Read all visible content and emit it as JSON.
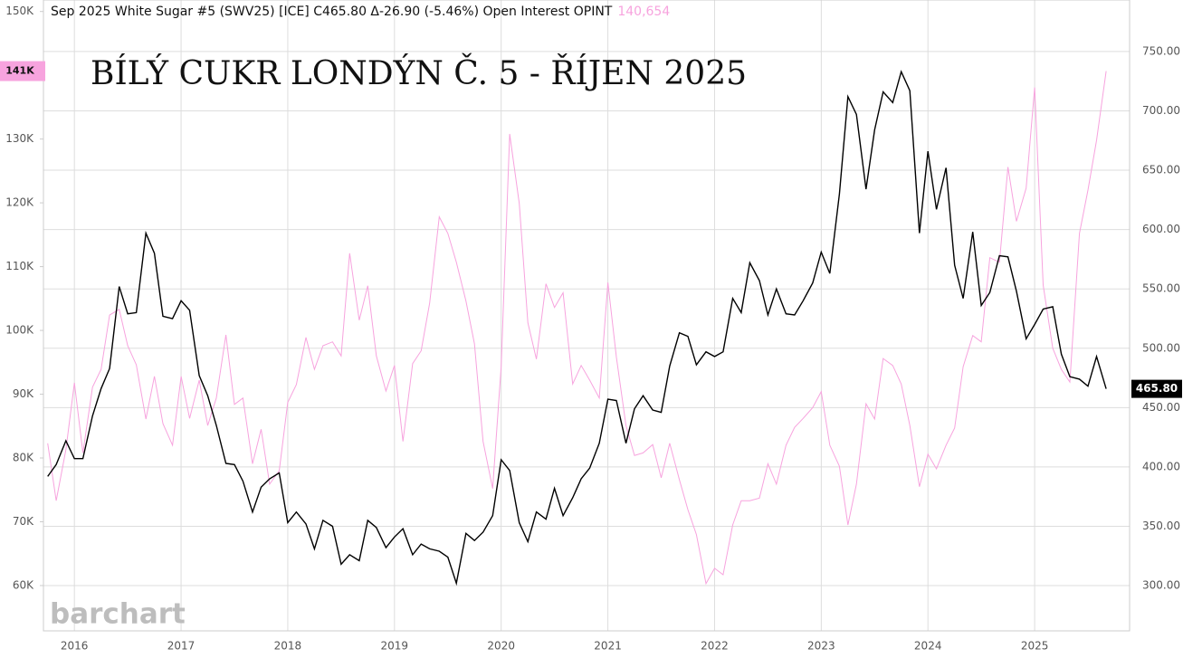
{
  "chart_data": {
    "type": "line",
    "header": "Sep 2025 White Sugar #5 (SWV25) [ICE] C465.80 Δ-26.90 (-5.46%) Open Interest  OPINT",
    "header_value": "140,654",
    "title": "BÍLÝ CUKR LONDÝN Č. 5 - ŘÍJEN 2025",
    "watermark": "barchart",
    "x": [
      2015.75,
      2015.83,
      2015.92,
      2016.0,
      2016.08,
      2016.17,
      2016.25,
      2016.33,
      2016.42,
      2016.5,
      2016.58,
      2016.67,
      2016.75,
      2016.83,
      2016.92,
      2017.0,
      2017.08,
      2017.17,
      2017.25,
      2017.33,
      2017.42,
      2017.5,
      2017.58,
      2017.67,
      2017.75,
      2017.83,
      2017.92,
      2018.0,
      2018.08,
      2018.17,
      2018.25,
      2018.33,
      2018.42,
      2018.5,
      2018.58,
      2018.67,
      2018.75,
      2018.83,
      2018.92,
      2019.0,
      2019.08,
      2019.17,
      2019.25,
      2019.33,
      2019.42,
      2019.5,
      2019.58,
      2019.67,
      2019.75,
      2019.83,
      2019.92,
      2020.0,
      2020.08,
      2020.17,
      2020.25,
      2020.33,
      2020.42,
      2020.5,
      2020.58,
      2020.67,
      2020.75,
      2020.83,
      2020.92,
      2021.0,
      2021.08,
      2021.17,
      2021.25,
      2021.33,
      2021.42,
      2021.5,
      2021.58,
      2021.67,
      2021.75,
      2021.83,
      2021.92,
      2022.0,
      2022.08,
      2022.17,
      2022.25,
      2022.33,
      2022.42,
      2022.5,
      2022.58,
      2022.67,
      2022.75,
      2022.83,
      2022.92,
      2023.0,
      2023.08,
      2023.17,
      2023.25,
      2023.33,
      2023.42,
      2023.5,
      2023.58,
      2023.67,
      2023.75,
      2023.83,
      2023.92,
      2024.0,
      2024.08,
      2024.17,
      2024.25,
      2024.33,
      2024.42,
      2024.5,
      2024.58,
      2024.67,
      2024.75,
      2024.83,
      2024.92,
      2025.0,
      2025.08,
      2025.17,
      2025.25,
      2025.33,
      2025.42,
      2025.5,
      2025.58,
      2025.67
    ],
    "series": [
      {
        "name": "SWV25",
        "color": "#000000",
        "axis": "y2",
        "last_label": "465.80",
        "values": [
          392,
          402,
          422,
          407,
          407,
          443,
          466,
          483,
          552,
          529,
          530,
          597,
          580,
          527,
          525,
          540,
          532,
          477,
          460,
          435,
          403,
          402,
          388,
          362,
          383,
          390,
          395,
          353,
          362,
          352,
          331,
          355,
          350,
          318,
          326,
          321,
          355,
          349,
          332,
          341,
          348,
          326,
          335,
          331,
          329,
          324,
          302,
          344,
          338,
          345,
          359,
          406,
          397,
          353,
          337,
          362,
          356,
          382,
          359,
          374,
          390,
          399,
          420,
          457,
          456,
          420,
          449,
          460,
          448,
          446,
          485,
          513,
          510,
          486,
          497,
          493,
          497,
          542,
          530,
          572,
          557,
          528,
          550,
          529,
          528,
          540,
          555,
          581,
          563,
          630,
          712,
          697,
          634,
          684,
          716,
          707,
          733,
          717,
          597,
          666,
          617,
          652,
          570,
          542,
          598,
          536,
          547,
          578,
          577,
          548,
          508,
          520,
          533,
          535,
          495,
          476,
          474,
          468,
          493,
          465.8
        ]
      },
      {
        "name": "OPINT",
        "color": "#f7a3de",
        "axis": "y",
        "last_label": "141K",
        "values": [
          82300,
          73300,
          81300,
          91800,
          80800,
          91100,
          93900,
          102400,
          103300,
          97600,
          94600,
          86100,
          92800,
          85400,
          82000,
          92800,
          86200,
          92200,
          85100,
          89400,
          99300,
          88400,
          89400,
          79100,
          84500,
          75900,
          78000,
          88700,
          91500,
          98900,
          93900,
          97600,
          98200,
          96000,
          112100,
          101600,
          107000,
          96000,
          90500,
          94500,
          82600,
          94800,
          96800,
          104300,
          117800,
          115200,
          110700,
          104600,
          97900,
          82600,
          75200,
          94300,
          130800,
          119900,
          101200,
          95500,
          107300,
          103600,
          105900,
          91600,
          94500,
          92200,
          89400,
          107500,
          95800,
          85100,
          80400,
          80800,
          82100,
          76900,
          82300,
          76600,
          71900,
          68000,
          60300,
          62700,
          61700,
          69500,
          73300,
          73300,
          73700,
          79100,
          75900,
          82000,
          84800,
          86200,
          87900,
          90400,
          82000,
          78700,
          69500,
          75900,
          88500,
          86100,
          95600,
          94500,
          91600,
          85100,
          75500,
          80600,
          78300,
          82000,
          84700,
          94300,
          99200,
          98200,
          111400,
          110700,
          125600,
          117100,
          122300,
          138100,
          107100,
          97200,
          93900,
          91900,
          115200,
          122000,
          129800,
          140654
        ]
      }
    ],
    "xlim": [
      2015.71,
      2025.89
    ],
    "xticks": [
      2016,
      2017,
      2018,
      2019,
      2020,
      2021,
      2022,
      2023,
      2024,
      2025
    ],
    "ylim": [
      52900,
      151800
    ],
    "yticks": [
      {
        "value": 60000,
        "label": "60K"
      },
      {
        "value": 70000,
        "label": "70K"
      },
      {
        "value": 80000,
        "label": "80K"
      },
      {
        "value": 90000,
        "label": "90K"
      },
      {
        "value": 100000,
        "label": "100K"
      },
      {
        "value": 110000,
        "label": "110K"
      },
      {
        "value": 120000,
        "label": "120K"
      },
      {
        "value": 130000,
        "label": "130K"
      },
      {
        "value": 150000,
        "label": "150K"
      }
    ],
    "y2lim": [
      261.9,
      793.4
    ],
    "y2ticks": [
      {
        "value": 300,
        "label": "300.00"
      },
      {
        "value": 350,
        "label": "350.00"
      },
      {
        "value": 400,
        "label": "400.00"
      },
      {
        "value": 450,
        "label": "450.00"
      },
      {
        "value": 500,
        "label": "500.00"
      },
      {
        "value": 550,
        "label": "550.00"
      },
      {
        "value": 600,
        "label": "600.00"
      },
      {
        "value": 650,
        "label": "650.00"
      },
      {
        "value": 700,
        "label": "700.00"
      },
      {
        "value": 750,
        "label": "750.00"
      }
    ],
    "grid": true
  }
}
